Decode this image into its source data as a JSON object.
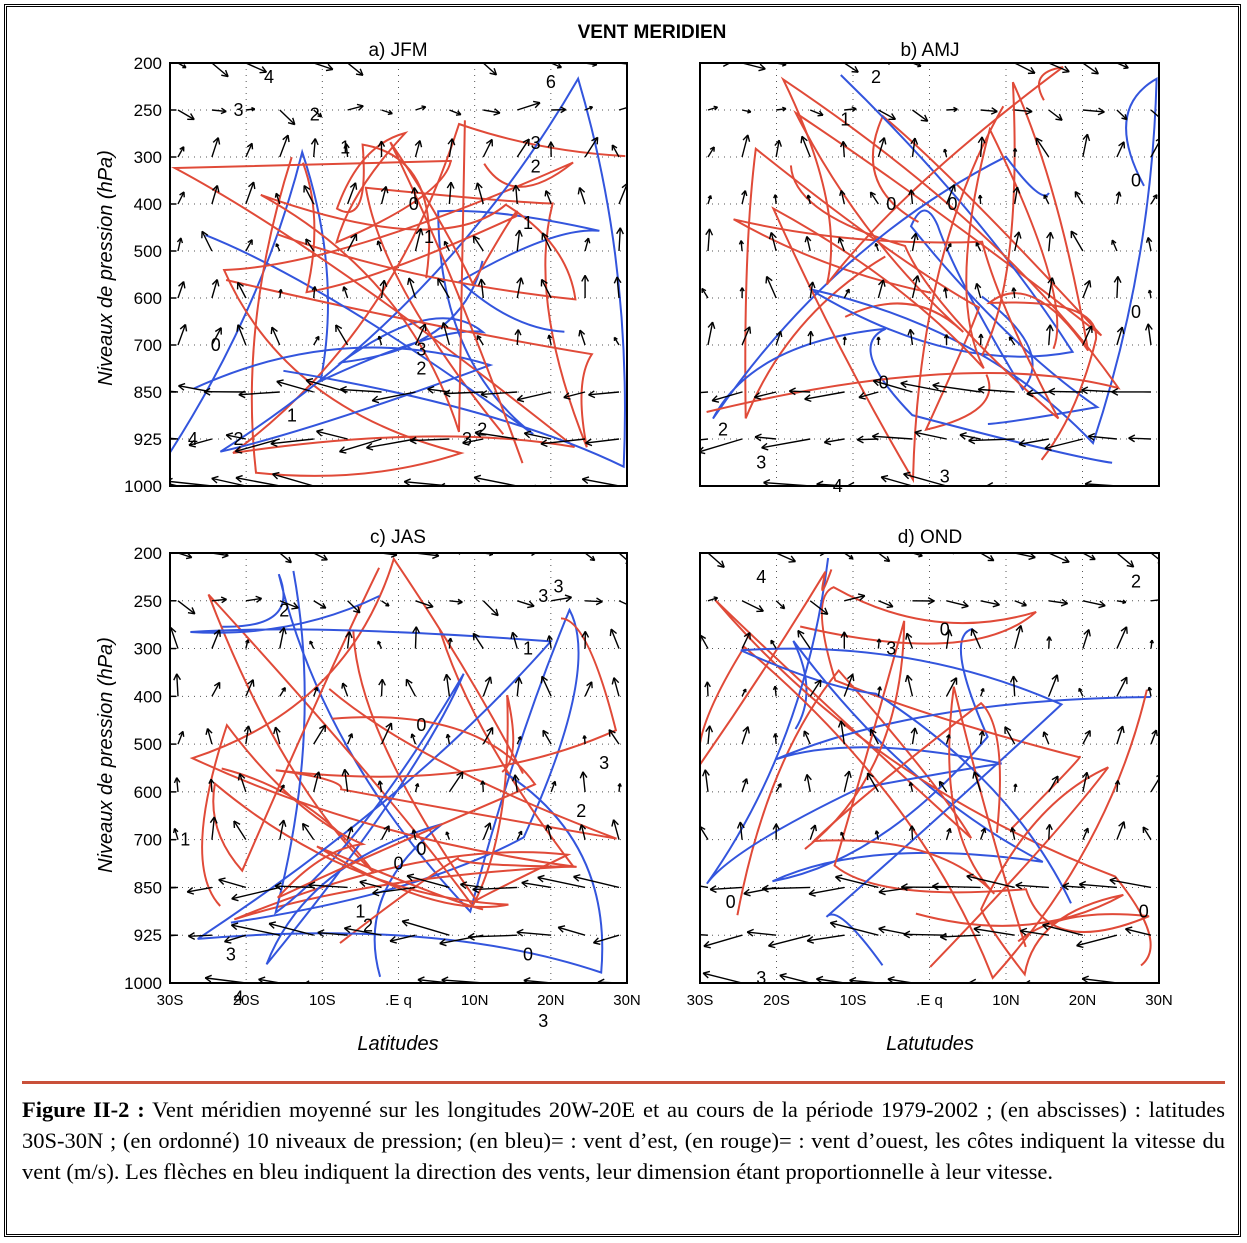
{
  "figure": {
    "main_title": "VENT MERIDIEN",
    "ylabel": "Niveaux de pression (hPa)",
    "xlabel_left": "Latitudes",
    "xlabel_right": "Latutudes",
    "colors": {
      "easterly_blue": "#3355dd",
      "westerly_red": "#e04a38",
      "arrows": "#000000"
    }
  },
  "chart_data": [
    {
      "type": "contour+vector",
      "title": "a) JFM",
      "y_ticks": [
        "200",
        "250",
        "300",
        "400",
        "500",
        "600",
        "700",
        "850",
        "925",
        "1000"
      ],
      "x_ticks": [],
      "contour_labels": [
        {
          "text": "4",
          "lat": -17,
          "p_index": 0.3
        },
        {
          "text": "2",
          "lat": -11,
          "p_index": 1.1
        },
        {
          "text": "3",
          "lat": -21,
          "p_index": 1.0
        },
        {
          "text": "1",
          "lat": -7,
          "p_index": 1.8
        },
        {
          "text": "0",
          "lat": 2,
          "p_index": 3.0
        },
        {
          "text": "1",
          "lat": 4,
          "p_index": 3.7
        },
        {
          "text": "1",
          "lat": 17,
          "p_index": 3.4
        },
        {
          "text": "2",
          "lat": 18,
          "p_index": 2.2
        },
        {
          "text": "3",
          "lat": 18,
          "p_index": 1.7
        },
        {
          "text": "6",
          "lat": 20,
          "p_index": 0.4
        },
        {
          "text": "0",
          "lat": -24,
          "p_index": 6.0
        },
        {
          "text": "3",
          "lat": 3,
          "p_index": 6.1
        },
        {
          "text": "2",
          "lat": 3,
          "p_index": 6.5
        },
        {
          "text": "1",
          "lat": -14,
          "p_index": 7.5
        },
        {
          "text": "2",
          "lat": -21,
          "p_index": 8.0
        },
        {
          "text": "4",
          "lat": -27,
          "p_index": 8.0
        },
        {
          "text": "2",
          "lat": 11,
          "p_index": 7.8
        },
        {
          "text": "3",
          "lat": 9,
          "p_index": 8.0
        }
      ]
    },
    {
      "type": "contour+vector",
      "title": "b) AMJ",
      "y_ticks": [],
      "x_ticks": [],
      "contour_labels": [
        {
          "text": "2",
          "lat": -7,
          "p_index": 0.3
        },
        {
          "text": "1",
          "lat": -11,
          "p_index": 1.2
        },
        {
          "text": "0",
          "lat": -5,
          "p_index": 3.0
        },
        {
          "text": "0",
          "lat": 3,
          "p_index": 3.0
        },
        {
          "text": "0",
          "lat": 27,
          "p_index": 2.5
        },
        {
          "text": "0",
          "lat": 27,
          "p_index": 5.3
        },
        {
          "text": "0",
          "lat": -6,
          "p_index": 6.8
        },
        {
          "text": "2",
          "lat": -27,
          "p_index": 7.8
        },
        {
          "text": "3",
          "lat": -22,
          "p_index": 8.5
        },
        {
          "text": "4",
          "lat": -12,
          "p_index": 9.0
        },
        {
          "text": "3",
          "lat": 2,
          "p_index": 8.8
        }
      ]
    },
    {
      "type": "contour+vector",
      "title": "c) JAS",
      "y_ticks": [
        "200",
        "250",
        "300",
        "400",
        "500",
        "600",
        "700",
        "850",
        "925",
        "1000"
      ],
      "x_ticks": [
        "30S",
        "20S",
        "10S",
        ".E q",
        "10N",
        "20N",
        "30N"
      ],
      "contour_labels": [
        {
          "text": "2",
          "lat": -15,
          "p_index": 1.2
        },
        {
          "text": "3",
          "lat": 21,
          "p_index": 0.7
        },
        {
          "text": "3",
          "lat": 19,
          "p_index": 0.9
        },
        {
          "text": "1",
          "lat": 17,
          "p_index": 2.0
        },
        {
          "text": "0",
          "lat": 3,
          "p_index": 3.6
        },
        {
          "text": "3",
          "lat": 27,
          "p_index": 4.4
        },
        {
          "text": "2",
          "lat": 24,
          "p_index": 5.4
        },
        {
          "text": "0",
          "lat": 3,
          "p_index": 6.2
        },
        {
          "text": "0",
          "lat": 0,
          "p_index": 6.5
        },
        {
          "text": "1",
          "lat": -28,
          "p_index": 6.0
        },
        {
          "text": "1",
          "lat": -5,
          "p_index": 7.5
        },
        {
          "text": "2",
          "lat": -4,
          "p_index": 7.8
        },
        {
          "text": "3",
          "lat": -22,
          "p_index": 8.4
        },
        {
          "text": "4",
          "lat": -21,
          "p_index": 9.3
        },
        {
          "text": "0",
          "lat": 17,
          "p_index": 8.4
        },
        {
          "text": "3",
          "lat": 19,
          "p_index": 9.8
        }
      ]
    },
    {
      "type": "contour+vector",
      "title": "d) OND",
      "y_ticks": [],
      "x_ticks": [
        "30S",
        "20S",
        "10S",
        ".E q",
        "10N",
        "20N",
        "30N"
      ],
      "contour_labels": [
        {
          "text": "4",
          "lat": -22,
          "p_index": 0.5
        },
        {
          "text": "0",
          "lat": 2,
          "p_index": 1.6
        },
        {
          "text": "3",
          "lat": -5,
          "p_index": 2.0
        },
        {
          "text": "2",
          "lat": 27,
          "p_index": 0.6
        },
        {
          "text": "0",
          "lat": -26,
          "p_index": 7.3
        },
        {
          "text": "3",
          "lat": -22,
          "p_index": 8.9
        },
        {
          "text": "0",
          "lat": 28,
          "p_index": 7.5
        }
      ]
    }
  ],
  "caption": {
    "label": "Figure II-2 :",
    "text": "Vent méridien moyenné sur les longitudes 20W-20E et au cours de la période 1979-2002 ; (en abscisses) : latitudes 30S-30N ; (en ordonné) 10 niveaux de pression; (en bleu)= : vent d’est, (en rouge)= : vent d’ouest, les côtes indiquent la vitesse du vent (m/s). Les flèches en bleu indiquent la direction des vents, leur dimension étant proportionnelle à leur vitesse."
  }
}
